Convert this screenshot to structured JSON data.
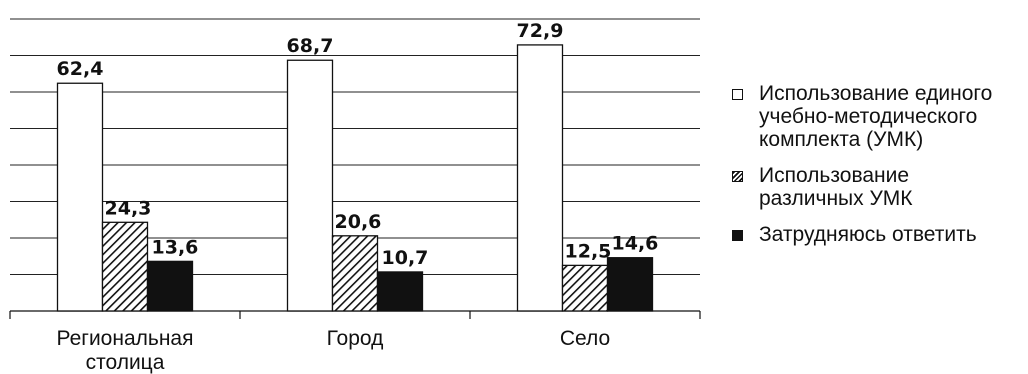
{
  "chart_data": {
    "type": "bar",
    "categories": [
      "Региональная столица",
      "Город",
      "Село"
    ],
    "category_lines": [
      [
        "Региональная",
        "столица"
      ],
      [
        "Город"
      ],
      [
        "Село"
      ]
    ],
    "series": [
      {
        "name": "Использование единого учебно-методического комплекта (УМК)",
        "values": [
          62.4,
          68.7,
          72.9
        ],
        "value_labels": [
          "62,4",
          "68,7",
          "72,9"
        ],
        "fill": "white"
      },
      {
        "name": "Использование различных УМК",
        "values": [
          24.3,
          20.6,
          12.5
        ],
        "value_labels": [
          "24,3",
          "20,6",
          "12,5"
        ],
        "fill": "hatched"
      },
      {
        "name": "Затрудняюсь ответить",
        "values": [
          13.6,
          10.7,
          14.6
        ],
        "value_labels": [
          "13,6",
          "10,7",
          "14,6"
        ],
        "fill": "black"
      }
    ],
    "ylim": [
      0,
      80
    ],
    "grid": true,
    "legend_position": "right",
    "colors": {
      "bar_stroke": "#111111",
      "dark": "#111111",
      "grid": "#222222"
    }
  },
  "legend": {
    "items": [
      {
        "lines": [
          "Использование единого",
          "учебно-методического",
          "комплекта (УМК)"
        ]
      },
      {
        "lines": [
          "Использование",
          "различных УМК"
        ]
      },
      {
        "lines": [
          "Затрудняюсь ответить"
        ]
      }
    ]
  }
}
